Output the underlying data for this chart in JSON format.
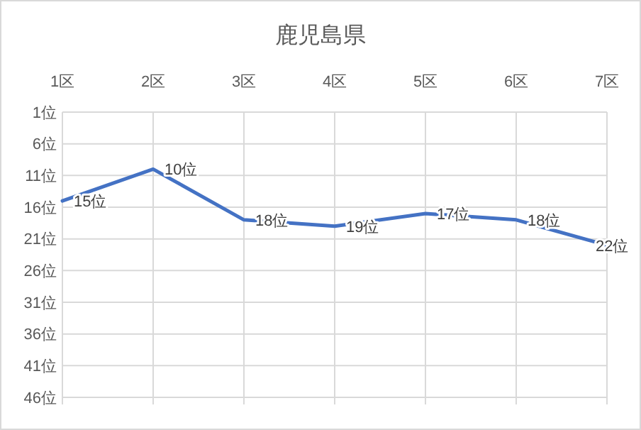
{
  "chart_data": {
    "type": "line",
    "title": "鹿児島県",
    "categories": [
      "1区",
      "2区",
      "3区",
      "4区",
      "5区",
      "6区",
      "7区"
    ],
    "series": [
      {
        "color": "#4472c4",
        "values": [
          15,
          10,
          18,
          19,
          17,
          18,
          22
        ]
      }
    ],
    "value_labels": [
      "15位",
      "10位",
      "18位",
      "19位",
      "17位",
      "18位",
      "22位"
    ],
    "ylim": [
      46,
      1
    ],
    "yticks": [
      {
        "value": 1,
        "label": "1位"
      },
      {
        "value": 6,
        "label": "6位"
      },
      {
        "value": 11,
        "label": "11位"
      },
      {
        "value": 16,
        "label": "16位"
      },
      {
        "value": 21,
        "label": "21位"
      },
      {
        "value": 26,
        "label": "26位"
      },
      {
        "value": 31,
        "label": "31位"
      },
      {
        "value": 36,
        "label": "36位"
      },
      {
        "value": 41,
        "label": "41位"
      },
      {
        "value": 46,
        "label": "46位"
      }
    ],
    "grid": true,
    "marker": "none",
    "line_style": "solid"
  }
}
